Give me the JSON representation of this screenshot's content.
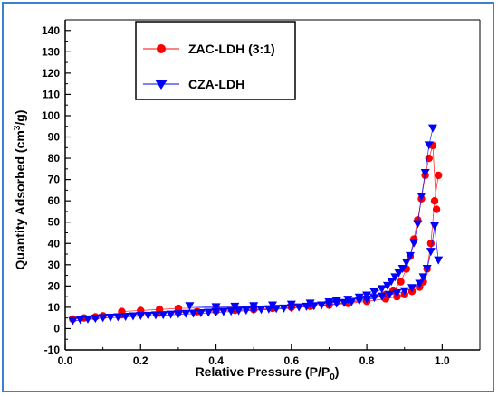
{
  "chart_data": {
    "type": "line",
    "xlabel": "Relative Pressure (P/P",
    "xlabel_sub": "0",
    "xlabel_close": ")",
    "ylabel": "Quantity Adsorbed (cm",
    "ylabel_sup": "3",
    "ylabel_close": "/g)",
    "xlim": [
      0.0,
      1.1
    ],
    "ylim": [
      -10,
      145
    ],
    "x_ticks": [
      "0.0",
      "0.2",
      "0.4",
      "0.6",
      "0.8",
      "1.0"
    ],
    "y_ticks": [
      "-10",
      "0",
      "10",
      "20",
      "30",
      "40",
      "50",
      "60",
      "70",
      "80",
      "90",
      "100",
      "110",
      "120",
      "130",
      "140"
    ],
    "legend_position": "top-left",
    "series": [
      {
        "name": "ZAC-LDH (3:1)",
        "color": "#ff0000",
        "marker": "circle",
        "adsorption": {
          "x": [
            0.02,
            0.05,
            0.08,
            0.1,
            0.15,
            0.2,
            0.25,
            0.3,
            0.35,
            0.4,
            0.45,
            0.5,
            0.55,
            0.6,
            0.65,
            0.7,
            0.75,
            0.8,
            0.85,
            0.88,
            0.9,
            0.92,
            0.94,
            0.95,
            0.96,
            0.97,
            0.98,
            0.99
          ],
          "y": [
            4.5,
            5.0,
            5.5,
            6.0,
            6.5,
            7.0,
            7.3,
            7.6,
            8.0,
            8.3,
            8.6,
            9.0,
            9.5,
            10.0,
            10.5,
            11.0,
            11.8,
            12.8,
            14.0,
            15.0,
            16.0,
            17.5,
            19.5,
            22.0,
            28.0,
            40.0,
            60.0,
            72.0
          ]
        },
        "desorption": {
          "x": [
            0.985,
            0.975,
            0.965,
            0.955,
            0.945,
            0.935,
            0.925,
            0.915,
            0.905,
            0.89,
            0.87,
            0.85,
            0.8,
            0.75,
            0.7,
            0.65,
            0.6,
            0.5,
            0.4,
            0.3,
            0.25,
            0.2,
            0.15
          ],
          "y": [
            56.0,
            86.0,
            80.0,
            72.0,
            61.0,
            51.0,
            42.0,
            34.0,
            28.0,
            22.0,
            18.0,
            16.0,
            14.0,
            12.8,
            12.0,
            11.3,
            10.8,
            10.2,
            9.8,
            9.5,
            9.0,
            8.5,
            8.0
          ]
        }
      },
      {
        "name": "CZA-LDH",
        "color": "#0000ff",
        "marker": "triangle-down",
        "adsorption": {
          "x": [
            0.02,
            0.04,
            0.06,
            0.08,
            0.1,
            0.12,
            0.14,
            0.16,
            0.18,
            0.2,
            0.22,
            0.24,
            0.26,
            0.28,
            0.3,
            0.32,
            0.34,
            0.36,
            0.38,
            0.4,
            0.42,
            0.44,
            0.46,
            0.48,
            0.5,
            0.52,
            0.54,
            0.56,
            0.58,
            0.6,
            0.62,
            0.64,
            0.66,
            0.68,
            0.7,
            0.72,
            0.74,
            0.76,
            0.78,
            0.8,
            0.82,
            0.84,
            0.86,
            0.88,
            0.9,
            0.92,
            0.94,
            0.95,
            0.96,
            0.97,
            0.98,
            0.99
          ],
          "y": [
            3.5,
            4.0,
            4.3,
            4.6,
            4.9,
            5.1,
            5.3,
            5.5,
            5.7,
            5.9,
            6.0,
            6.2,
            6.3,
            6.5,
            6.7,
            6.9,
            7.0,
            7.2,
            7.4,
            7.6,
            7.8,
            8.0,
            8.2,
            8.4,
            8.6,
            8.8,
            9.0,
            9.2,
            9.4,
            9.6,
            9.9,
            10.2,
            10.5,
            10.8,
            11.2,
            11.6,
            12.0,
            12.5,
            13.0,
            13.6,
            14.3,
            15.0,
            15.8,
            16.6,
            17.5,
            19.0,
            21.0,
            24.0,
            28.0,
            36.0,
            48.0,
            32.0
          ]
        },
        "desorption": {
          "x": [
            0.975,
            0.965,
            0.955,
            0.945,
            0.935,
            0.925,
            0.915,
            0.905,
            0.895,
            0.885,
            0.875,
            0.865,
            0.855,
            0.84,
            0.82,
            0.8,
            0.78,
            0.75,
            0.72,
            0.7,
            0.65,
            0.6,
            0.55,
            0.5,
            0.45,
            0.4,
            0.33
          ],
          "y": [
            94.0,
            86.0,
            73.0,
            62.0,
            49.0,
            40.0,
            34.0,
            31.0,
            28.0,
            26.0,
            24.0,
            22.0,
            20.0,
            18.5,
            17.0,
            15.5,
            14.5,
            13.5,
            12.8,
            12.3,
            11.7,
            11.2,
            10.8,
            10.5,
            10.2,
            10.0,
            10.5
          ]
        }
      }
    ]
  }
}
